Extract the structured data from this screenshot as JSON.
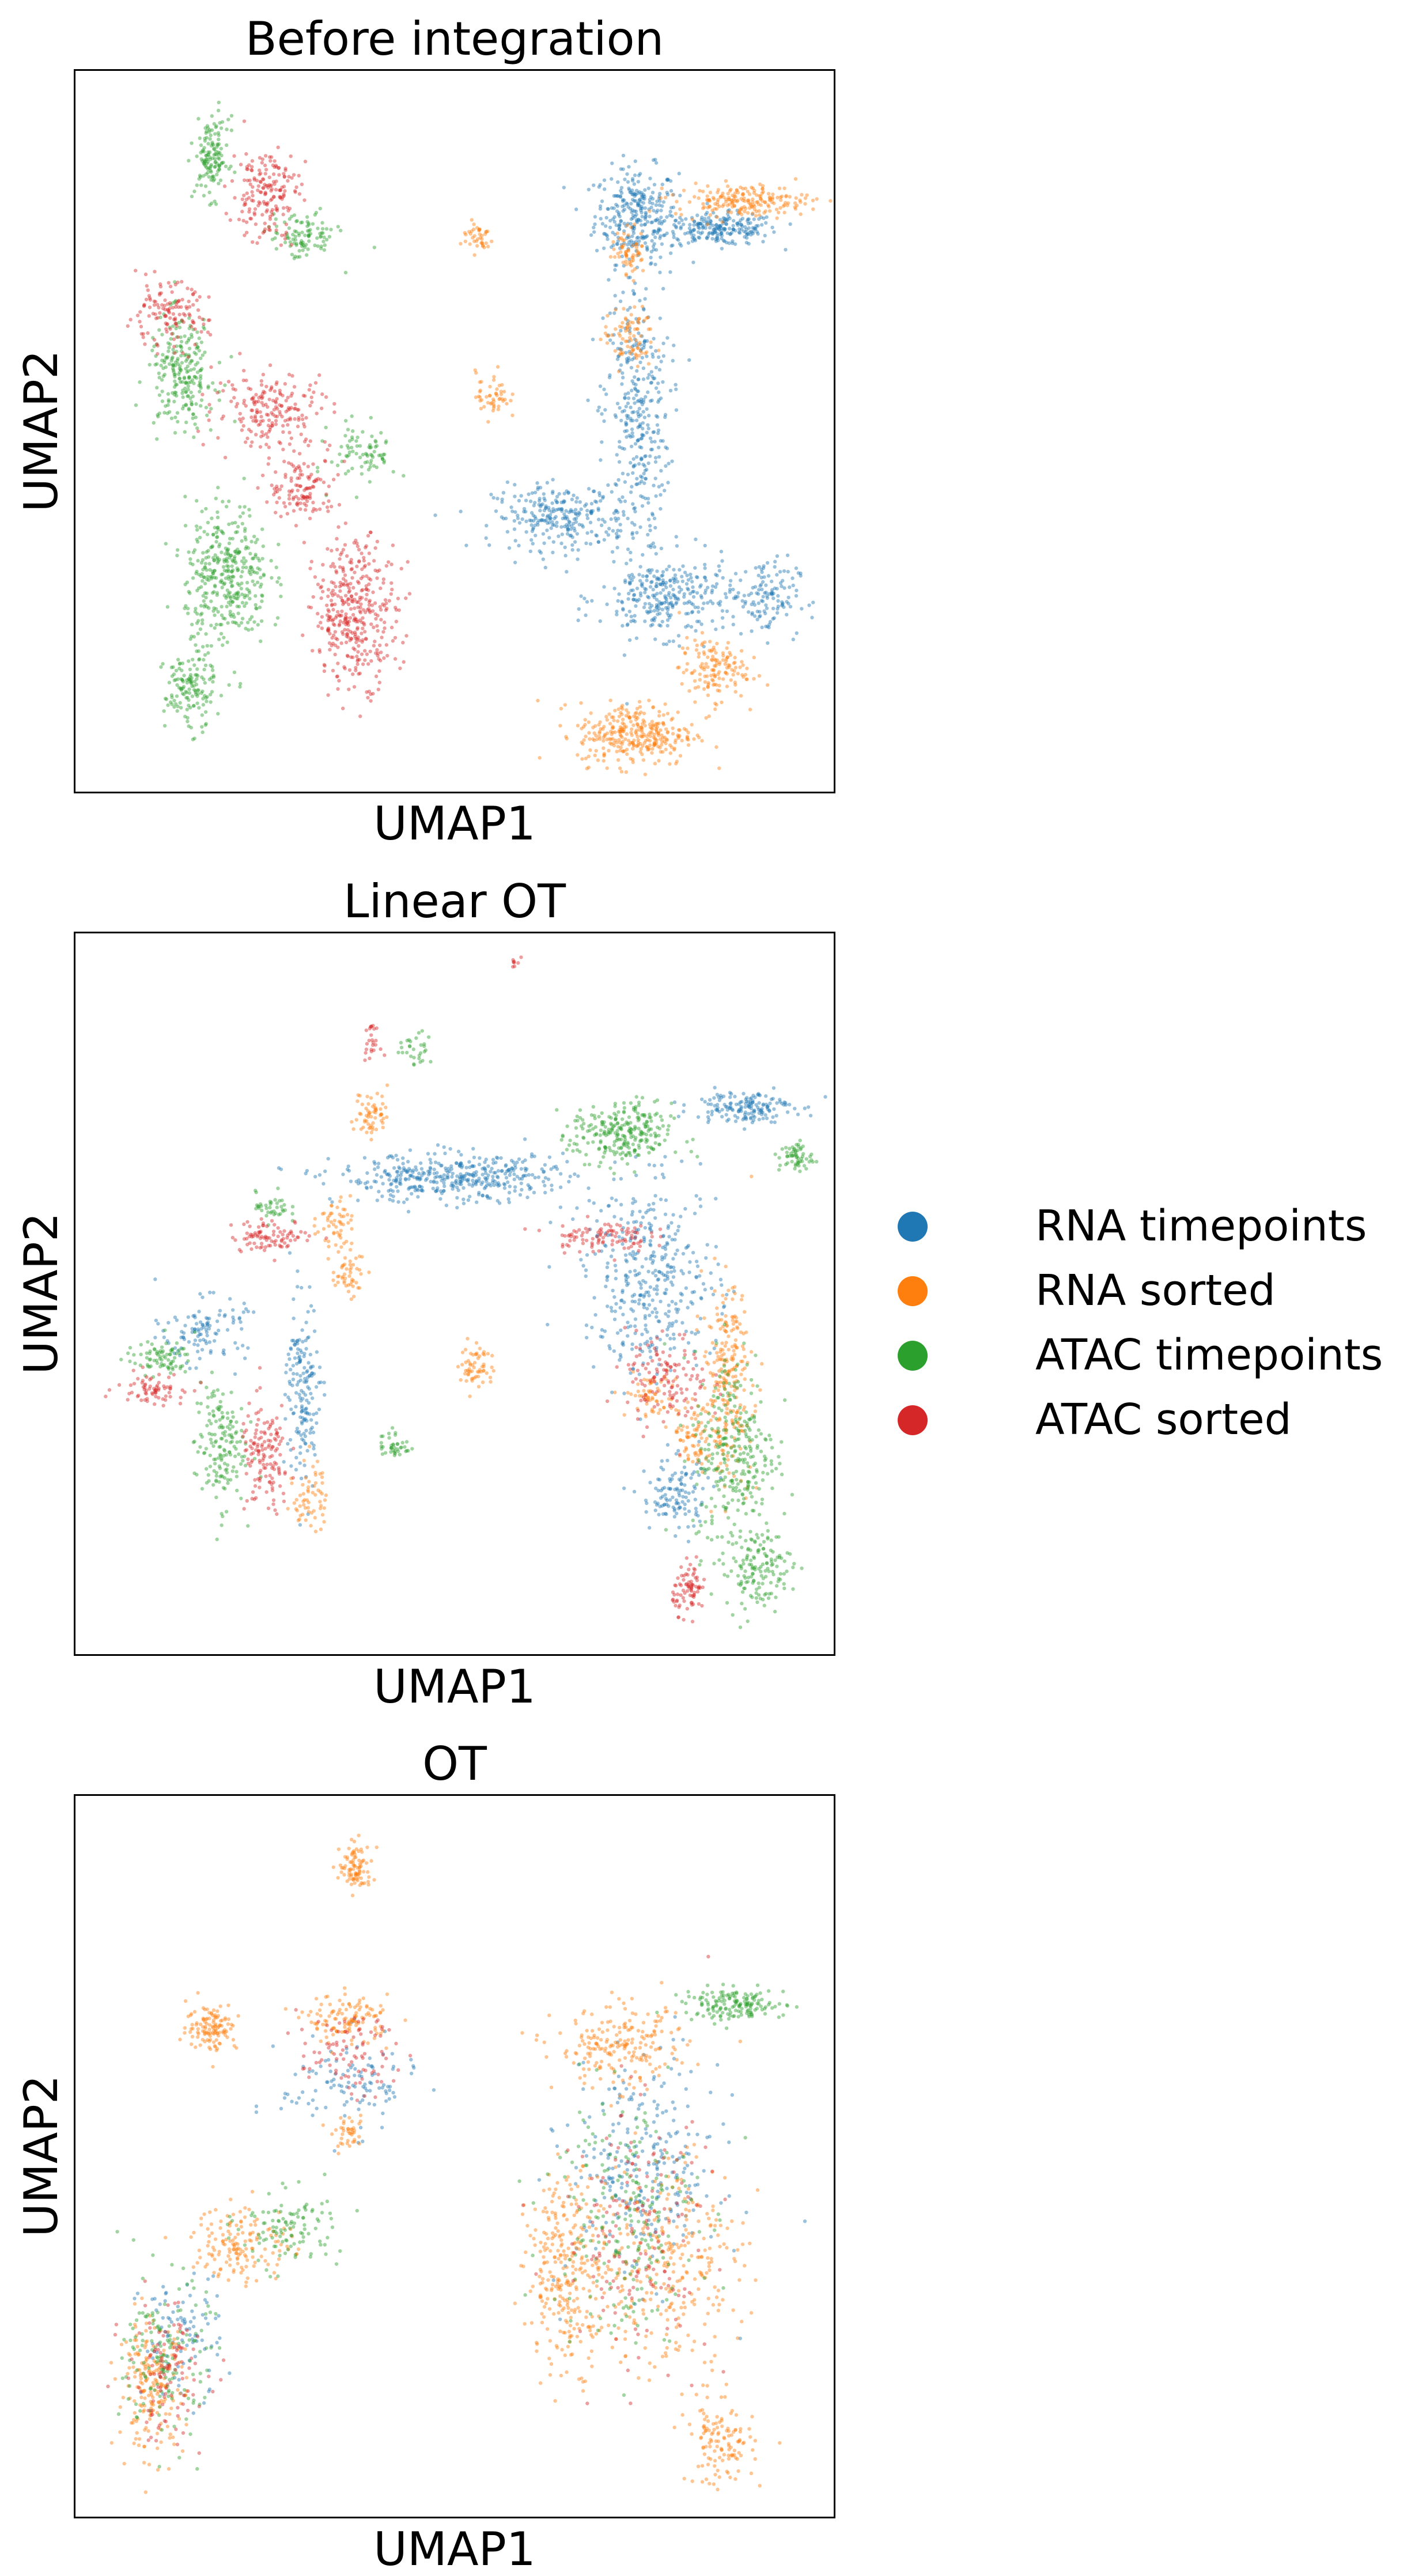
{
  "colors": {
    "rna_timepoints": "#1f77b4",
    "rna_sorted": "#ff7f0e",
    "atac_timepoints": "#2ca02c",
    "atac_sorted": "#d62728"
  },
  "legend": {
    "placement": "right",
    "items": [
      {
        "label": "RNA timepoints",
        "color": "#1f77b4"
      },
      {
        "label": "RNA sorted",
        "color": "#ff7f0e"
      },
      {
        "label": "ATAC timepoints",
        "color": "#2ca02c"
      },
      {
        "label": "ATAC sorted",
        "color": "#d62728"
      }
    ]
  },
  "chart_data": [
    {
      "type": "scatter",
      "title": "Before integration",
      "xlabel": "UMAP1",
      "ylabel": "UMAP2",
      "ticks": "none",
      "grid": false,
      "xlim": [
        0,
        1
      ],
      "ylim": [
        0,
        1
      ],
      "series": [
        {
          "name": "RNA timepoints",
          "color": "#1f77b4",
          "clusters": [
            [
              0.74,
              0.8,
              0.05,
              0.06,
              300
            ],
            [
              0.85,
              0.78,
              0.07,
              0.02,
              220
            ],
            [
              0.74,
              0.52,
              0.04,
              0.18,
              350
            ],
            [
              0.64,
              0.38,
              0.08,
              0.04,
              260
            ],
            [
              0.78,
              0.27,
              0.08,
              0.05,
              300
            ],
            [
              0.91,
              0.27,
              0.04,
              0.05,
              120
            ]
          ]
        },
        {
          "name": "RNA sorted",
          "color": "#ff7f0e",
          "clusters": [
            [
              0.74,
              0.08,
              0.07,
              0.04,
              320
            ],
            [
              0.88,
              0.82,
              0.08,
              0.02,
              200
            ],
            [
              0.84,
              0.17,
              0.04,
              0.04,
              140
            ],
            [
              0.53,
              0.77,
              0.02,
              0.02,
              40
            ],
            [
              0.73,
              0.63,
              0.03,
              0.04,
              80
            ],
            [
              0.55,
              0.55,
              0.02,
              0.03,
              50
            ],
            [
              0.73,
              0.75,
              0.02,
              0.03,
              60
            ]
          ]
        },
        {
          "name": "ATAC timepoints",
          "color": "#2ca02c",
          "clusters": [
            [
              0.2,
              0.3,
              0.05,
              0.09,
              380
            ],
            [
              0.14,
              0.58,
              0.04,
              0.07,
              240
            ],
            [
              0.18,
              0.88,
              0.02,
              0.05,
              140
            ],
            [
              0.3,
              0.77,
              0.04,
              0.03,
              100
            ],
            [
              0.38,
              0.47,
              0.04,
              0.04,
              80
            ],
            [
              0.15,
              0.14,
              0.03,
              0.05,
              140
            ]
          ]
        },
        {
          "name": "ATAC sorted",
          "color": "#d62728",
          "clusters": [
            [
              0.37,
              0.25,
              0.05,
              0.09,
              380
            ],
            [
              0.25,
              0.83,
              0.04,
              0.06,
              180
            ],
            [
              0.12,
              0.66,
              0.05,
              0.04,
              130
            ],
            [
              0.26,
              0.53,
              0.07,
              0.05,
              200
            ],
            [
              0.3,
              0.42,
              0.04,
              0.04,
              120
            ]
          ]
        }
      ]
    },
    {
      "type": "scatter",
      "title": "Linear OT",
      "xlabel": "UMAP1",
      "ylabel": "UMAP2",
      "ticks": "none",
      "grid": false,
      "xlim": [
        0,
        1
      ],
      "ylim": [
        0,
        1
      ],
      "series": [
        {
          "name": "RNA timepoints",
          "color": "#1f77b4",
          "clusters": [
            [
              0.5,
              0.66,
              0.14,
              0.03,
              420
            ],
            [
              0.76,
              0.52,
              0.08,
              0.12,
              380
            ],
            [
              0.88,
              0.76,
              0.06,
              0.02,
              160
            ],
            [
              0.3,
              0.36,
              0.02,
              0.12,
              170
            ],
            [
              0.17,
              0.45,
              0.05,
              0.04,
              110
            ],
            [
              0.79,
              0.22,
              0.04,
              0.05,
              120
            ]
          ]
        },
        {
          "name": "RNA sorted",
          "color": "#ff7f0e",
          "clusters": [
            [
              0.86,
              0.38,
              0.03,
              0.12,
              240
            ],
            [
              0.36,
              0.53,
              0.02,
              0.03,
              50
            ],
            [
              0.34,
              0.6,
              0.02,
              0.03,
              50
            ],
            [
              0.53,
              0.4,
              0.02,
              0.03,
              60
            ],
            [
              0.39,
              0.75,
              0.02,
              0.03,
              60
            ],
            [
              0.31,
              0.22,
              0.02,
              0.05,
              60
            ],
            [
              0.82,
              0.3,
              0.03,
              0.04,
              80
            ],
            [
              0.76,
              0.36,
              0.03,
              0.03,
              60
            ]
          ]
        },
        {
          "name": "ATAC timepoints",
          "color": "#2ca02c",
          "clusters": [
            [
              0.72,
              0.72,
              0.06,
              0.04,
              260
            ],
            [
              0.87,
              0.28,
              0.05,
              0.13,
              300
            ],
            [
              0.9,
              0.12,
              0.04,
              0.05,
              140
            ],
            [
              0.95,
              0.69,
              0.02,
              0.02,
              60
            ],
            [
              0.19,
              0.29,
              0.03,
              0.08,
              160
            ],
            [
              0.11,
              0.41,
              0.04,
              0.02,
              80
            ],
            [
              0.26,
              0.62,
              0.02,
              0.02,
              40
            ],
            [
              0.42,
              0.29,
              0.02,
              0.02,
              40
            ],
            [
              0.45,
              0.84,
              0.02,
              0.02,
              30
            ]
          ]
        },
        {
          "name": "ATAC sorted",
          "color": "#d62728",
          "clusters": [
            [
              0.26,
              0.58,
              0.05,
              0.02,
              90
            ],
            [
              0.69,
              0.58,
              0.06,
              0.02,
              100
            ],
            [
              0.78,
              0.38,
              0.05,
              0.06,
              130
            ],
            [
              0.81,
              0.09,
              0.02,
              0.03,
              80
            ],
            [
              0.25,
              0.27,
              0.03,
              0.07,
              140
            ],
            [
              0.1,
              0.37,
              0.04,
              0.02,
              70
            ],
            [
              0.39,
              0.85,
              0.01,
              0.02,
              25
            ],
            [
              0.58,
              0.96,
              0.006,
              0.006,
              8
            ]
          ]
        }
      ]
    },
    {
      "type": "scatter",
      "title": "OT",
      "xlabel": "UMAP1",
      "ylabel": "UMAP2",
      "ticks": "none",
      "grid": false,
      "xlim": [
        0,
        1
      ],
      "ylim": [
        0,
        1
      ],
      "series": [
        {
          "name": "RNA timepoints",
          "color": "#1f77b4",
          "clusters": [
            [
              0.75,
              0.48,
              0.09,
              0.14,
              260
            ],
            [
              0.36,
              0.6,
              0.08,
              0.06,
              110
            ],
            [
              0.14,
              0.25,
              0.05,
              0.08,
              90
            ]
          ]
        },
        {
          "name": "RNA sorted",
          "color": "#ff7f0e",
          "clusters": [
            [
              0.65,
              0.34,
              0.05,
              0.12,
              300
            ],
            [
              0.78,
              0.35,
              0.09,
              0.14,
              300
            ],
            [
              0.1,
              0.18,
              0.04,
              0.08,
              200
            ],
            [
              0.18,
              0.68,
              0.03,
              0.03,
              120
            ],
            [
              0.37,
              0.9,
              0.02,
              0.03,
              90
            ],
            [
              0.36,
              0.69,
              0.05,
              0.03,
              120
            ],
            [
              0.72,
              0.65,
              0.08,
              0.05,
              200
            ],
            [
              0.85,
              0.1,
              0.04,
              0.05,
              120
            ],
            [
              0.22,
              0.38,
              0.06,
              0.05,
              150
            ],
            [
              0.36,
              0.53,
              0.02,
              0.02,
              40
            ]
          ]
        },
        {
          "name": "ATAC timepoints",
          "color": "#2ca02c",
          "clusters": [
            [
              0.87,
              0.71,
              0.06,
              0.02,
              160
            ],
            [
              0.72,
              0.42,
              0.09,
              0.16,
              220
            ],
            [
              0.12,
              0.22,
              0.05,
              0.1,
              150
            ],
            [
              0.28,
              0.4,
              0.06,
              0.05,
              110
            ]
          ]
        },
        {
          "name": "ATAC sorted",
          "color": "#d62728",
          "clusters": [
            [
              0.74,
              0.4,
              0.09,
              0.16,
              160
            ],
            [
              0.12,
              0.2,
              0.05,
              0.09,
              110
            ],
            [
              0.36,
              0.64,
              0.06,
              0.05,
              90
            ]
          ]
        }
      ]
    }
  ]
}
